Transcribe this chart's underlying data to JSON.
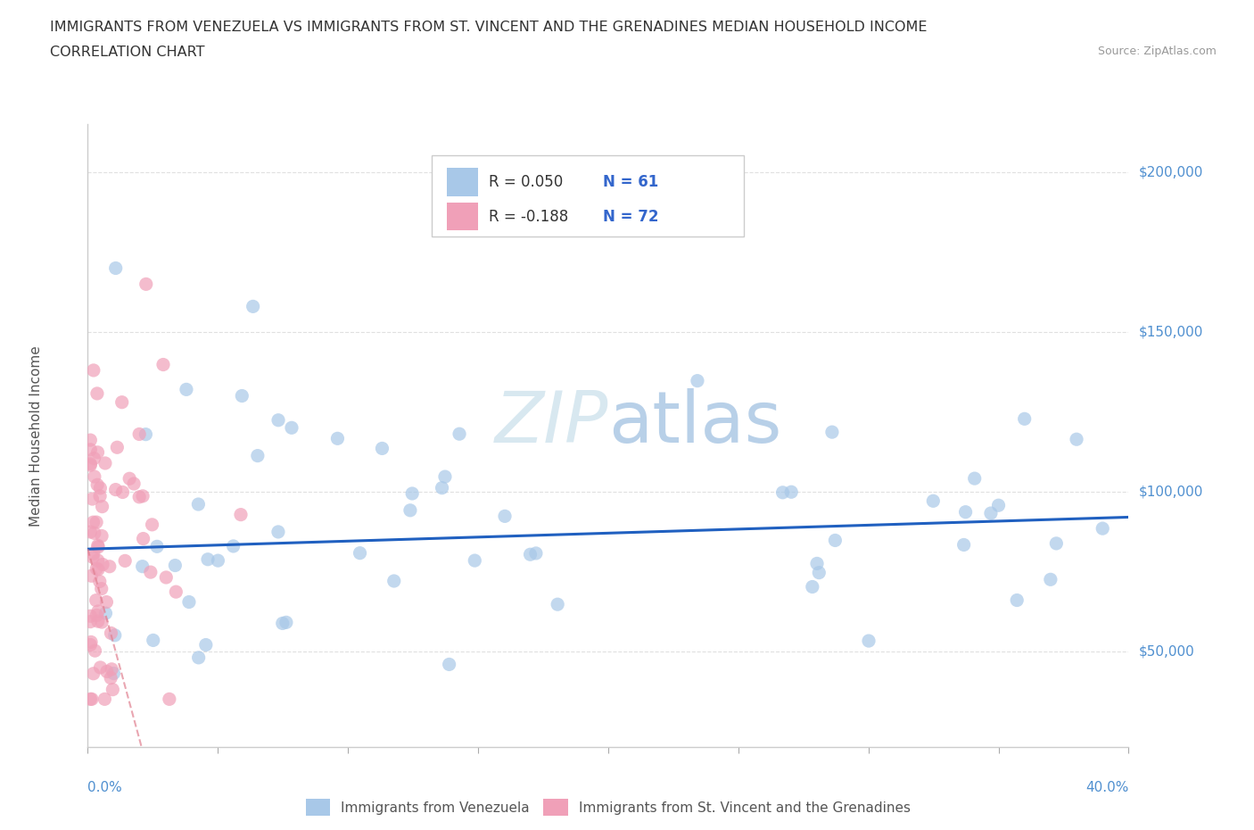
{
  "title_line1": "IMMIGRANTS FROM VENEZUELA VS IMMIGRANTS FROM ST. VINCENT AND THE GRENADINES MEDIAN HOUSEHOLD INCOME",
  "title_line2": "CORRELATION CHART",
  "source": "Source: ZipAtlas.com",
  "ylabel": "Median Household Income",
  "color_venezuela": "#a8c8e8",
  "color_svg": "#f0a0b8",
  "trendline_venezuela_color": "#2060c0",
  "trendline_svg_color": "#e08090",
  "watermark_color": "#d8e8f0",
  "legend_box_color": "#cccccc",
  "ytick_color": "#5090d0",
  "xtick_color": "#5090d0",
  "grid_color": "#e0e0e0",
  "title_color": "#333333",
  "ylabel_color": "#555555",
  "source_color": "#999999",
  "legend_text_color": "#333333",
  "legend_n_color": "#3366cc",
  "bottom_legend_color": "#555555"
}
